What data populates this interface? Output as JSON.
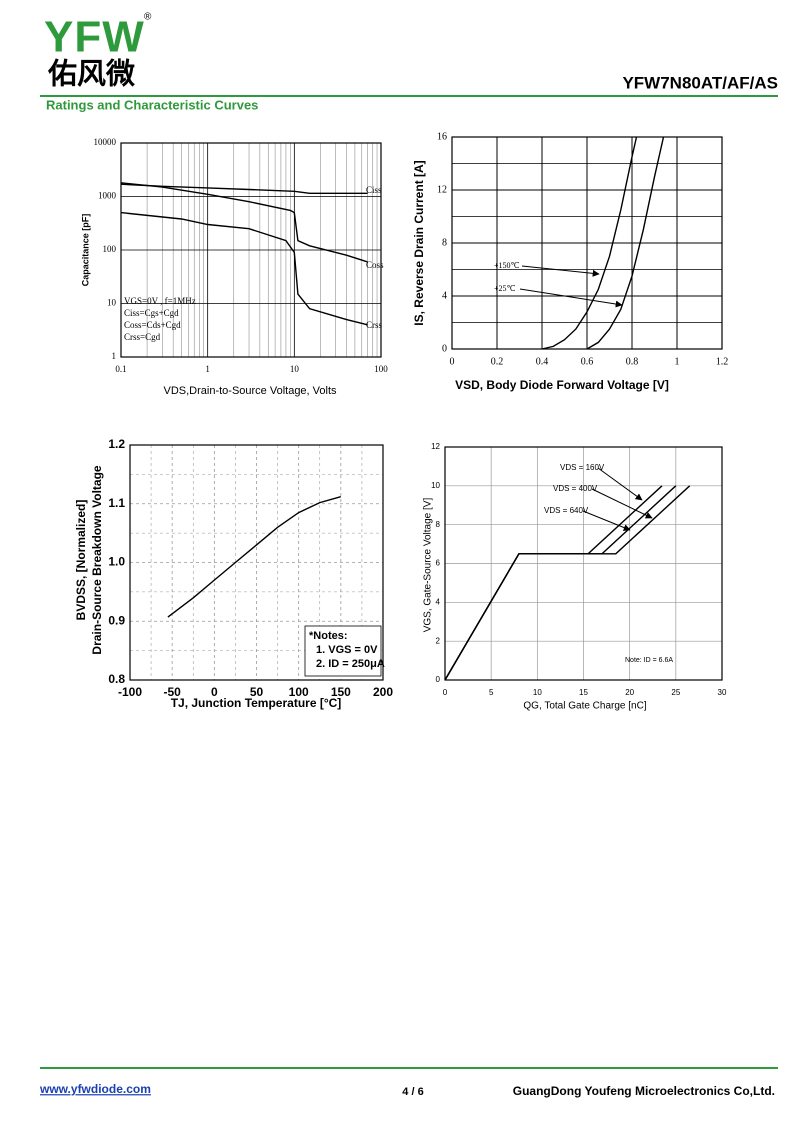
{
  "header": {
    "logo": "YFW",
    "logo_cn": "佑风微",
    "part": "YFW7N80AT/AF/AS",
    "section": "Ratings and Characteristic Curves"
  },
  "footer": {
    "website": "www.yfwdiode.com",
    "page": "4 / 6",
    "company": "GuangDong Youfeng Microelectronics Co,Ltd."
  },
  "chart_data": [
    {
      "type": "line",
      "xscale": "log",
      "yscale": "log",
      "xlabel": "VDS,Drain-to-Source Voltage, Volts",
      "ylabel": "Capacitance [pF]",
      "xlim": [
        0.1,
        100
      ],
      "ylim": [
        1,
        10000
      ],
      "xticks": [
        0.1,
        1,
        10,
        100
      ],
      "yticks": [
        1,
        10,
        100,
        1000,
        10000
      ],
      "minor_xticks": [
        0.2,
        0.3,
        0.4,
        0.5,
        0.6,
        0.7,
        0.8,
        0.9,
        2,
        3,
        4,
        5,
        6,
        7,
        8,
        9,
        20,
        30,
        40,
        50,
        60,
        70,
        80,
        90
      ],
      "grid": true,
      "annotations": [
        "VGS=0V , f=1MHz",
        "Ciss=Cgs+Cgd",
        "Coss=Cds+Cgd",
        "Crss=Cgd"
      ],
      "series": [
        {
          "name": "Ciss",
          "color": "#000000",
          "x": [
            0.1,
            0.3,
            1,
            3,
            10,
            15,
            30,
            70
          ],
          "values": [
            1700,
            1550,
            1450,
            1350,
            1250,
            1150,
            1150,
            1150
          ]
        },
        {
          "name": "Coss",
          "color": "#000000",
          "x": [
            0.1,
            0.3,
            1,
            3,
            9,
            10,
            11,
            15,
            40,
            70
          ],
          "values": [
            1800,
            1500,
            1100,
            800,
            550,
            500,
            150,
            120,
            80,
            60
          ]
        },
        {
          "name": "Crss",
          "color": "#000000",
          "x": [
            0.1,
            0.5,
            1,
            3,
            8,
            10,
            11,
            15,
            40,
            70
          ],
          "values": [
            500,
            380,
            300,
            250,
            150,
            90,
            15,
            8,
            5,
            4
          ]
        }
      ]
    },
    {
      "type": "line",
      "xlabel": "VSD, Body Diode Forward Voltage [V]",
      "ylabel": "IS, Reverse Drain Current [A]",
      "xlim": [
        0,
        1.2
      ],
      "ylim": [
        0,
        16
      ],
      "xticks": [
        0,
        0.2,
        0.4,
        0.6,
        0.8,
        1,
        1.2
      ],
      "yticks": [
        0,
        4,
        8,
        12,
        16
      ],
      "minor_yticks": [
        2,
        6,
        10,
        14
      ],
      "grid": true,
      "series": [
        {
          "name": "+150℃",
          "color": "#000000",
          "x": [
            0.4,
            0.45,
            0.5,
            0.55,
            0.6,
            0.65,
            0.7,
            0.75,
            0.8,
            0.82
          ],
          "values": [
            0,
            0.2,
            0.7,
            1.5,
            2.8,
            4.5,
            7,
            10.5,
            14.5,
            16
          ]
        },
        {
          "name": "+25℃",
          "color": "#000000",
          "x": [
            0.6,
            0.65,
            0.7,
            0.75,
            0.8,
            0.85,
            0.9,
            0.94
          ],
          "values": [
            0,
            0.5,
            1.5,
            3,
            5.5,
            9,
            13,
            16
          ]
        }
      ]
    },
    {
      "type": "line",
      "xlabel": "TJ, Junction Temperature [°C]",
      "ylabel": [
        "BVDSS, [Normalized]",
        "Drain-Source Breakdown Voltage"
      ],
      "xlim": [
        -100,
        200
      ],
      "ylim": [
        0.8,
        1.2
      ],
      "xticks": [
        -100,
        -50,
        0,
        50,
        100,
        150,
        200
      ],
      "yticks": [
        0.8,
        0.9,
        {
          "value": 1,
          "label": "1.0"
        },
        1.1,
        1.2
      ],
      "minor_xticks": [
        -75,
        -25,
        25,
        75,
        125,
        175
      ],
      "minor_yticks": [
        0.85,
        0.95,
        1.05,
        1.15
      ],
      "grid": true,
      "annotations": [
        "*Notes:",
        "1. VGS = 0V",
        "2. ID = 250μA"
      ],
      "series": [
        {
          "name": null,
          "color": "#000000",
          "x": [
            -55,
            -25,
            0,
            25,
            50,
            75,
            100,
            125,
            150
          ],
          "values": [
            0.907,
            0.94,
            0.97,
            1.0,
            1.03,
            1.06,
            1.085,
            1.102,
            1.112
          ]
        }
      ]
    },
    {
      "type": "line",
      "xlabel": "QG, Total Gate Charge [nC]",
      "ylabel": "VGS, Gate-Source Voltage [V]",
      "xlim": [
        0,
        30
      ],
      "ylim": [
        0,
        12
      ],
      "xticks": [
        0,
        5,
        10,
        15,
        20,
        25,
        30
      ],
      "yticks": [
        0,
        2,
        4,
        6,
        8,
        10,
        12
      ],
      "grid": true,
      "annotations": [
        "Note: ID = 6.6A"
      ],
      "series": [
        {
          "name": "VDS = 160V",
          "color": "#000000",
          "x": [
            0,
            8,
            15.5,
            23.5
          ],
          "values": [
            0,
            6.5,
            6.5,
            10
          ]
        },
        {
          "name": "VDS = 400V",
          "color": "#000000",
          "x": [
            0,
            8,
            17,
            25
          ],
          "values": [
            0,
            6.5,
            6.5,
            10
          ]
        },
        {
          "name": "VDS = 640V",
          "color": "#000000",
          "x": [
            0,
            8,
            18.5,
            26.5
          ],
          "values": [
            0,
            6.5,
            6.5,
            10
          ]
        }
      ]
    }
  ]
}
